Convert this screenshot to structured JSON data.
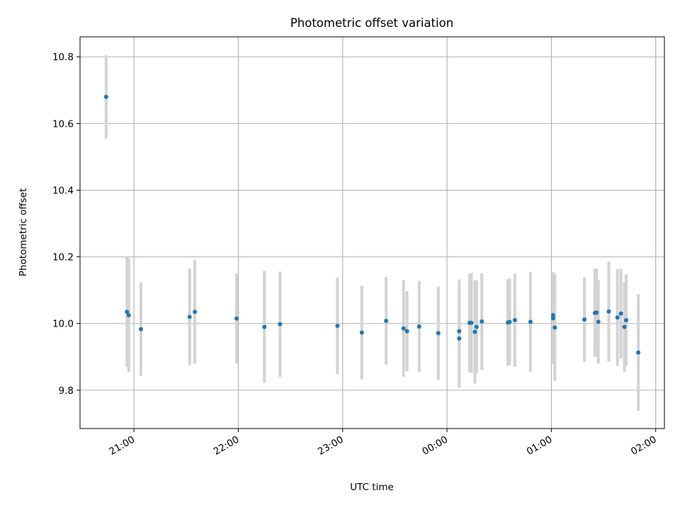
{
  "chart_data": {
    "type": "scatter",
    "title": "Photometric offset variation",
    "xlabel": "UTC time",
    "ylabel": "Photometric offset",
    "x_ticks": [
      "21:00",
      "22:00",
      "23:00",
      "00:00",
      "01:00",
      "02:00"
    ],
    "y_ticks": [
      "9.8",
      "10.0",
      "10.2",
      "10.4",
      "10.6",
      "10.8"
    ],
    "xlim": [
      "20:29",
      "02:05"
    ],
    "ylim": [
      9.685,
      10.86
    ],
    "grid": true,
    "marker_color": "#1f77b4",
    "errorbar_color": "#d3d3d3",
    "series": [
      {
        "points": [
          {
            "t": "20:44",
            "y": 10.68,
            "err": 0.125
          },
          {
            "t": "20:56",
            "y": 10.035,
            "err": 0.165
          },
          {
            "t": "20:57",
            "y": 10.025,
            "err": 0.17
          },
          {
            "t": "21:04",
            "y": 9.983,
            "err": 0.14
          },
          {
            "t": "21:32",
            "y": 10.02,
            "err": 0.145
          },
          {
            "t": "21:35",
            "y": 10.035,
            "err": 0.155
          },
          {
            "t": "21:59",
            "y": 10.015,
            "err": 0.135
          },
          {
            "t": "22:15",
            "y": 9.99,
            "err": 0.168
          },
          {
            "t": "22:24",
            "y": 9.998,
            "err": 0.158
          },
          {
            "t": "22:57",
            "y": 9.993,
            "err": 0.145
          },
          {
            "t": "23:11",
            "y": 9.973,
            "err": 0.14
          },
          {
            "t": "23:25",
            "y": 10.008,
            "err": 0.132
          },
          {
            "t": "23:35",
            "y": 9.985,
            "err": 0.145
          },
          {
            "t": "23:37",
            "y": 9.977,
            "err": 0.12
          },
          {
            "t": "23:44",
            "y": 9.991,
            "err": 0.137
          },
          {
            "t": "23:55",
            "y": 9.971,
            "err": 0.14
          },
          {
            "t": "00:07",
            "y": 9.955,
            "err": 0.148
          },
          {
            "t": "00:07",
            "y": 9.977,
            "err": 0.155
          },
          {
            "t": "00:13",
            "y": 10.002,
            "err": 0.148
          },
          {
            "t": "00:14",
            "y": 10.002,
            "err": 0.15
          },
          {
            "t": "00:16",
            "y": 9.975,
            "err": 0.155
          },
          {
            "t": "00:17",
            "y": 9.99,
            "err": 0.14
          },
          {
            "t": "00:20",
            "y": 10.006,
            "err": 0.145
          },
          {
            "t": "00:35",
            "y": 10.003,
            "err": 0.13
          },
          {
            "t": "00:36",
            "y": 10.005,
            "err": 0.13
          },
          {
            "t": "00:39",
            "y": 10.01,
            "err": 0.14
          },
          {
            "t": "00:48",
            "y": 10.005,
            "err": 0.15
          },
          {
            "t": "01:01",
            "y": 10.016,
            "err": 0.138
          },
          {
            "t": "01:01",
            "y": 10.025,
            "err": 0.128
          },
          {
            "t": "01:02",
            "y": 9.988,
            "err": 0.16
          },
          {
            "t": "01:19",
            "y": 10.012,
            "err": 0.127
          },
          {
            "t": "01:25",
            "y": 10.032,
            "err": 0.132
          },
          {
            "t": "01:26",
            "y": 10.033,
            "err": 0.132
          },
          {
            "t": "01:27",
            "y": 10.005,
            "err": 0.125
          },
          {
            "t": "01:33",
            "y": 10.036,
            "err": 0.15
          },
          {
            "t": "01:38",
            "y": 10.018,
            "err": 0.145
          },
          {
            "t": "01:40",
            "y": 10.03,
            "err": 0.135
          },
          {
            "t": "01:42",
            "y": 9.99,
            "err": 0.135
          },
          {
            "t": "01:43",
            "y": 10.01,
            "err": 0.138
          },
          {
            "t": "01:50",
            "y": 9.913,
            "err": 0.175
          }
        ]
      }
    ]
  }
}
